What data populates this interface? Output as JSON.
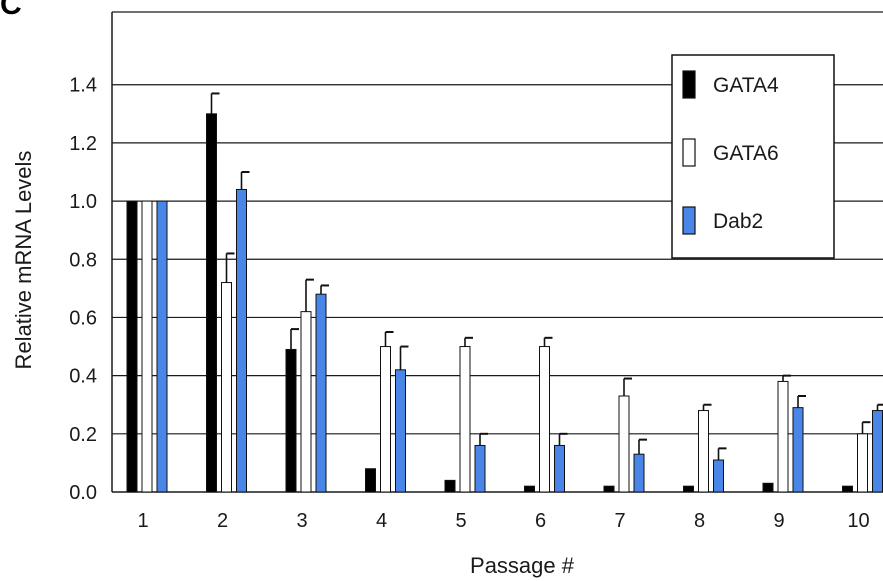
{
  "panel_label": "C",
  "chart_data": {
    "type": "bar",
    "title": "",
    "xlabel": "Passage #",
    "ylabel": "Relative mRNA Levels",
    "ylim": [
      0,
      1.65
    ],
    "yticks": [
      "0.0",
      "0.2",
      "0.4",
      "0.6",
      "0.8",
      "1.0",
      "1.2",
      "1.4"
    ],
    "categories": [
      "1",
      "2",
      "3",
      "4",
      "5",
      "6",
      "7",
      "8",
      "9",
      "10"
    ],
    "grid": true,
    "legend_position": "top-right",
    "series": [
      {
        "name": "GATA4",
        "color": "#000000",
        "values": [
          1.0,
          1.3,
          0.49,
          0.08,
          0.04,
          0.02,
          0.02,
          0.02,
          0.03,
          0.02
        ],
        "errors": [
          0.0,
          0.07,
          0.07,
          0.0,
          0.0,
          0.0,
          0.0,
          0.0,
          0.0,
          0.0
        ]
      },
      {
        "name": "GATA6",
        "color": "#ffffff",
        "values": [
          1.0,
          0.72,
          0.62,
          0.5,
          0.5,
          0.5,
          0.33,
          0.28,
          0.38,
          0.2
        ],
        "errors": [
          0.0,
          0.1,
          0.11,
          0.05,
          0.03,
          0.03,
          0.06,
          0.02,
          0.02,
          0.04
        ]
      },
      {
        "name": "Dab2",
        "color": "#4a86e8",
        "values": [
          1.0,
          1.04,
          0.68,
          0.42,
          0.16,
          0.16,
          0.13,
          0.11,
          0.29,
          0.28
        ],
        "errors": [
          0.0,
          0.06,
          0.03,
          0.08,
          0.04,
          0.04,
          0.05,
          0.04,
          0.04,
          0.02
        ]
      }
    ]
  }
}
